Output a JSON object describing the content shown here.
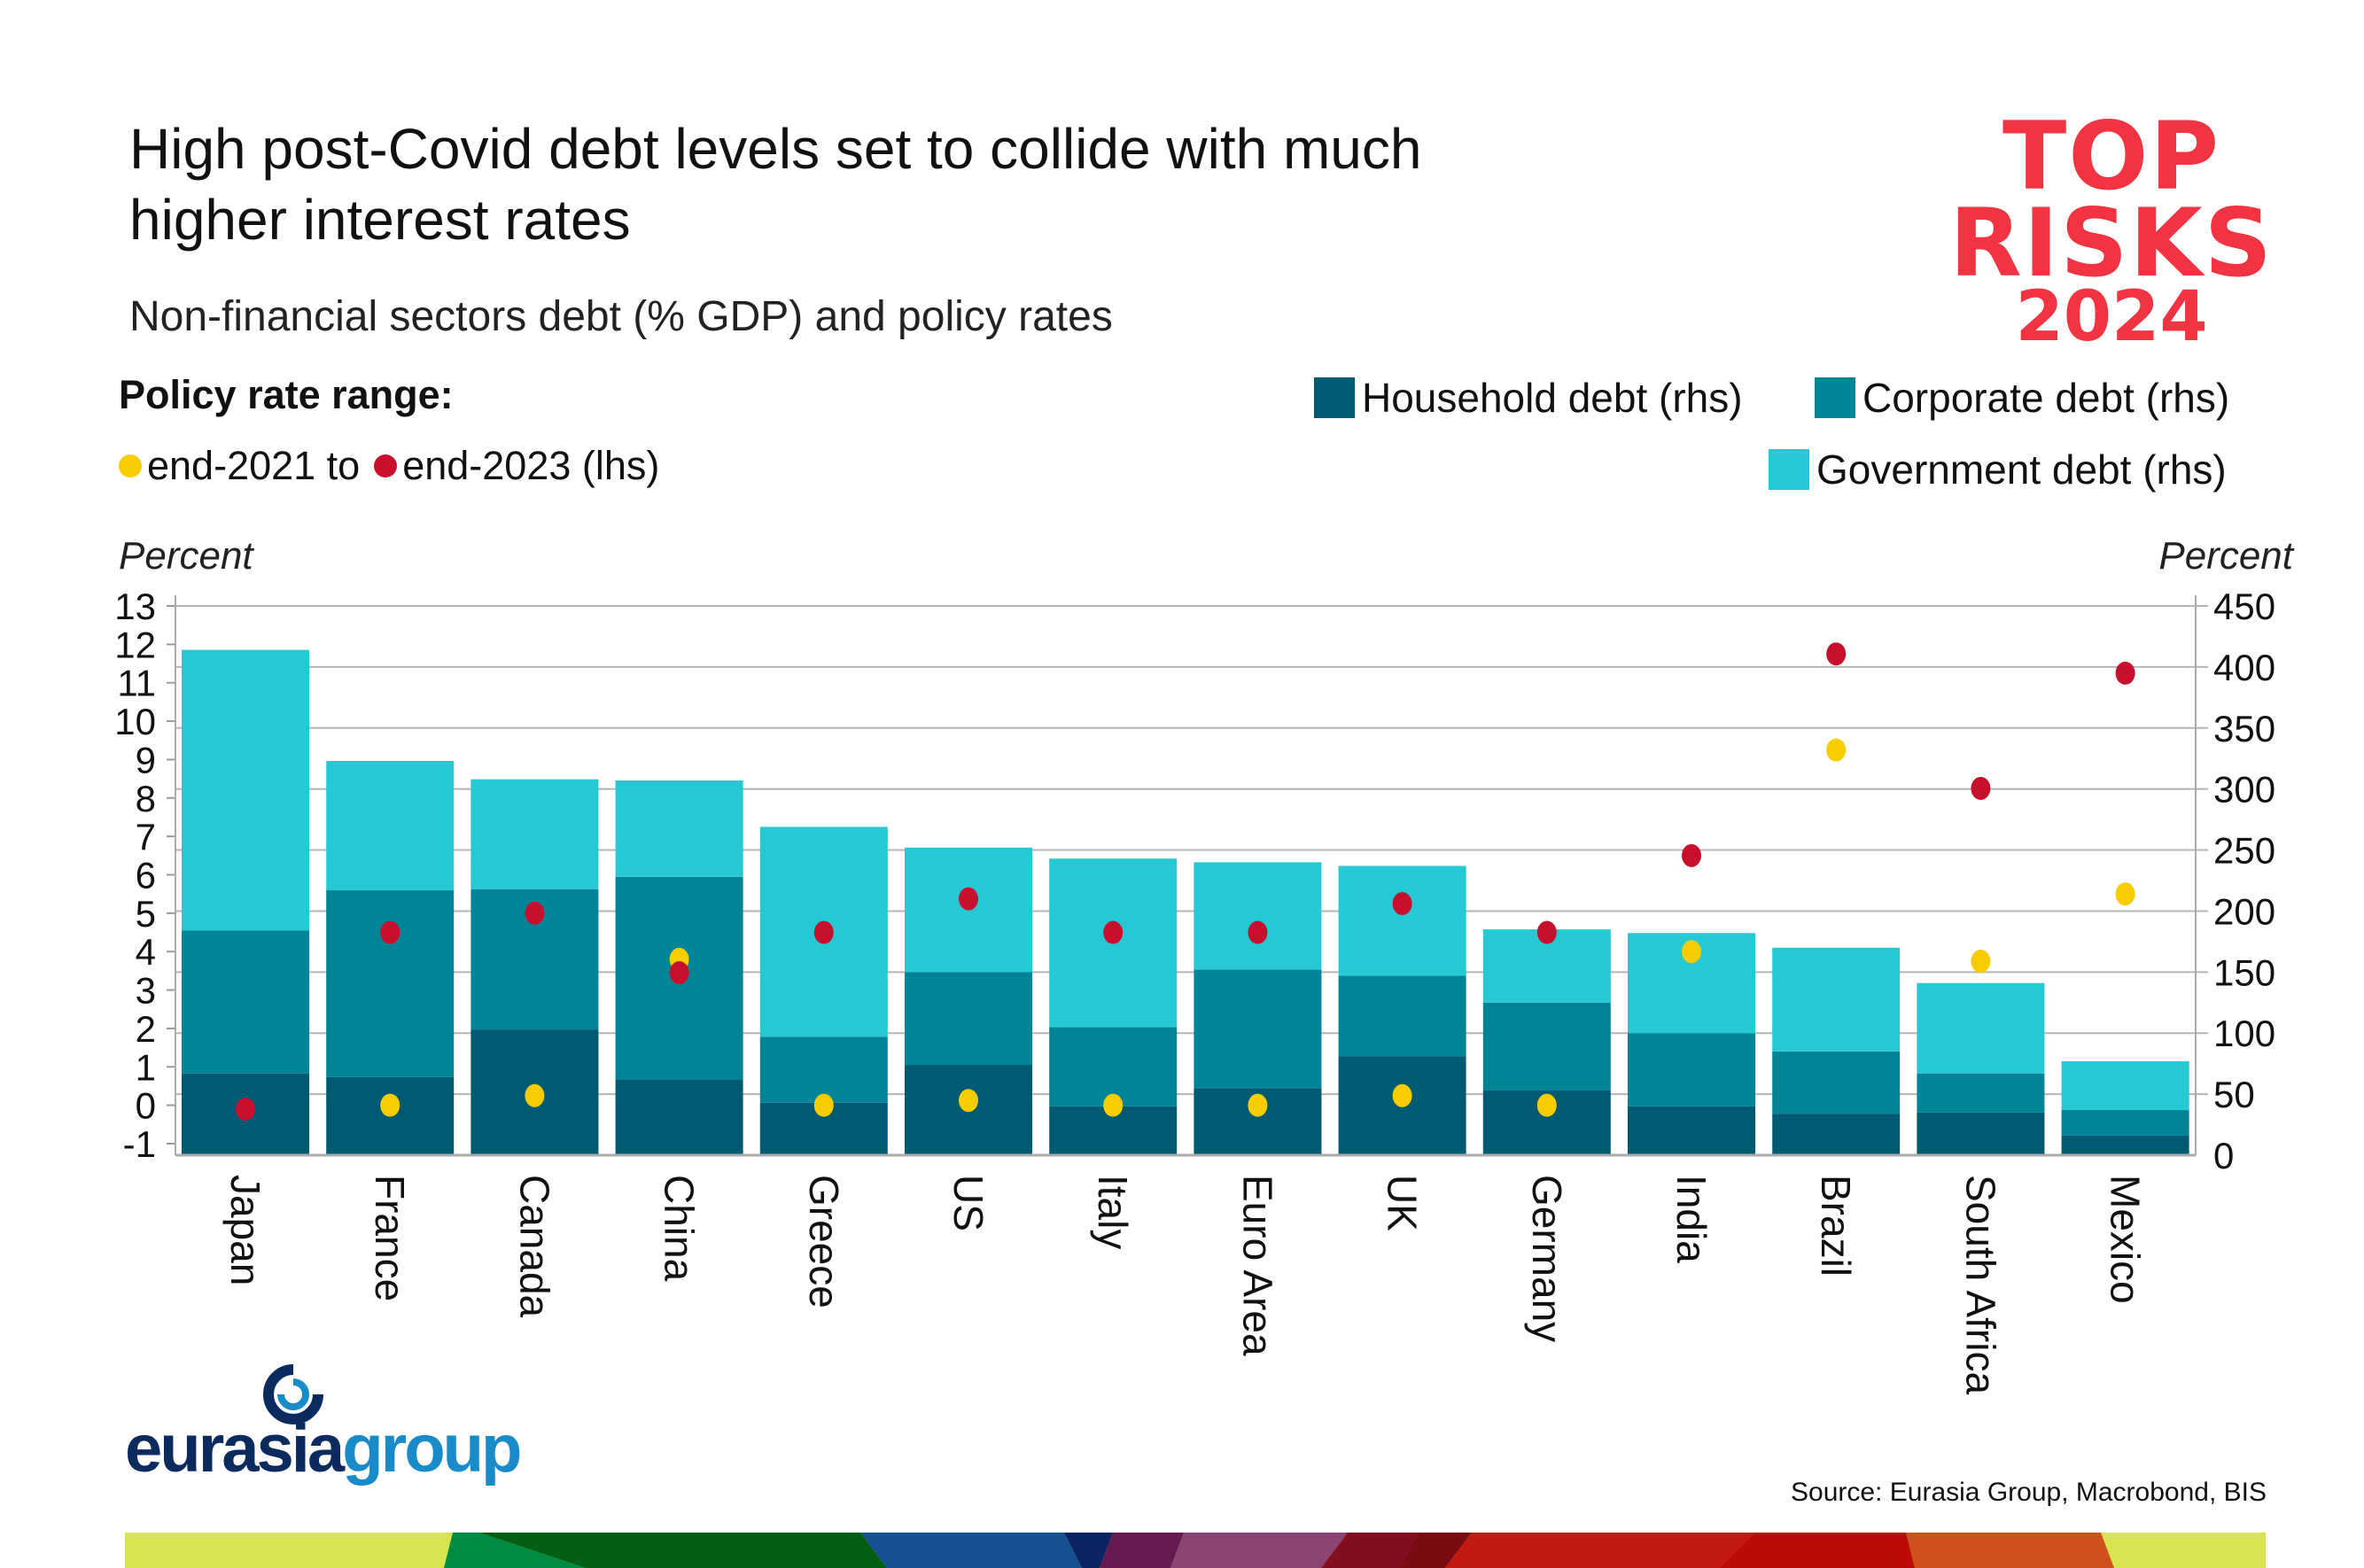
{
  "header": {
    "title": "High post-Covid debt levels set to collide with much higher interest rates",
    "subtitle": "Non-financial sectors debt (% GDP) and policy rates",
    "brand_logo": {
      "line1": "TOP",
      "line2": "RISKS",
      "line3": "2024",
      "color": "#f23341"
    }
  },
  "legend": {
    "policy_title": "Policy rate range:",
    "from_label": "end-2021 to",
    "to_label": "end-2023 (lhs)",
    "household": "Household debt (rhs)",
    "corporate": "Corporate debt (rhs)",
    "government": "Government debt (rhs)"
  },
  "footer": {
    "source": "Source: Eurasia Group, Macrobond, BIS",
    "logo": "eurasiagroup"
  },
  "colors": {
    "household": "#005a72",
    "corporate": "#008496",
    "government": "#26c9d3",
    "end2021": "#f9cc00",
    "end2023": "#c8102e",
    "line_from": "#f4b032",
    "line_to": "#d64040"
  },
  "chart_data": {
    "type": "bar",
    "stacked": true,
    "title": "High post-Covid debt levels set to collide with much higher interest rates",
    "subtitle": "Non-financial sectors debt (% GDP) and policy rates",
    "ylabel_left": "Percent",
    "ylabel_right": "Percent",
    "ylim_left": [
      -1,
      13
    ],
    "ylim_right": [
      0,
      450
    ],
    "yticks_left": [
      -1,
      0,
      1,
      2,
      3,
      4,
      5,
      6,
      7,
      8,
      9,
      10,
      11,
      12,
      13
    ],
    "yticks_right": [
      0,
      50,
      100,
      150,
      200,
      250,
      300,
      350,
      400,
      450
    ],
    "grid": true,
    "legend_position": "top",
    "categories": [
      "Japan",
      "France",
      "Canada",
      "China",
      "Greece",
      "US",
      "Italy",
      "Euro Area",
      "UK",
      "Germany",
      "India",
      "Brazil",
      "South Africa",
      "Mexico"
    ],
    "series": [
      {
        "name": "Household debt (rhs)",
        "axis": "right",
        "values": [
          67,
          64,
          103,
          62,
          43,
          74,
          40,
          55,
          81,
          53,
          40,
          34,
          35,
          16
        ]
      },
      {
        "name": "Corporate debt (rhs)",
        "axis": "right",
        "values": [
          117,
          153,
          115,
          166,
          54,
          76,
          65,
          97,
          66,
          72,
          60,
          51,
          32,
          21
        ]
      },
      {
        "name": "Government debt (rhs)",
        "axis": "right",
        "values": [
          230,
          106,
          90,
          79,
          172,
          102,
          138,
          88,
          90,
          60,
          82,
          85,
          74,
          40
        ]
      }
    ],
    "policy_rates": {
      "axis": "left",
      "end_2021": [
        -0.1,
        0,
        0.25,
        3.8,
        0,
        0.125,
        0,
        0,
        0.25,
        0,
        4.0,
        9.25,
        3.75,
        5.5
      ],
      "end_2023": [
        -0.1,
        4.5,
        5.0,
        3.45,
        4.5,
        5.375,
        4.5,
        4.5,
        5.25,
        4.5,
        6.5,
        11.75,
        8.25,
        11.25
      ]
    }
  }
}
